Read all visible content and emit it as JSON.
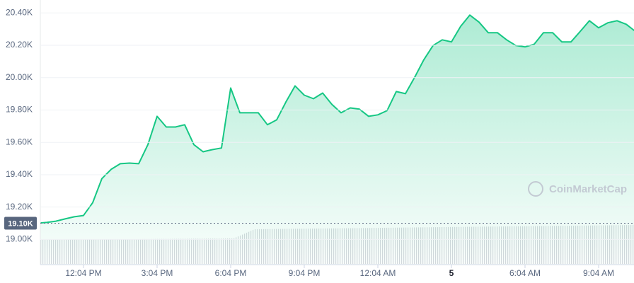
{
  "chart_data": {
    "type": "line",
    "categories": [
      null,
      null,
      null,
      null,
      null,
      "12:04 PM",
      null,
      null,
      null,
      null,
      null,
      null,
      null,
      "3:04 PM",
      null,
      null,
      null,
      null,
      null,
      null,
      null,
      "6:04 PM",
      null,
      null,
      null,
      null,
      null,
      null,
      null,
      "9:04 PM",
      null,
      null,
      null,
      null,
      null,
      null,
      null,
      "12:04 AM",
      null,
      null,
      null,
      null,
      null,
      null,
      null,
      "5",
      null,
      null,
      null,
      null,
      null,
      null,
      null,
      "6:04 AM",
      null,
      null,
      null,
      null,
      null,
      null,
      null,
      "9:04 AM",
      null,
      null,
      null,
      null
    ],
    "values": [
      19100,
      19105,
      19113,
      19127,
      19140,
      19148,
      19227,
      19376,
      19433,
      19468,
      19472,
      19468,
      19586,
      19761,
      19695,
      19695,
      19709,
      19586,
      19542,
      19555,
      19565,
      19936,
      19783,
      19783,
      19783,
      19709,
      19739,
      19849,
      19949,
      19892,
      19870,
      19905,
      19835,
      19783,
      19813,
      19805,
      19761,
      19770,
      19796,
      19914,
      19901,
      20002,
      20111,
      20199,
      20234,
      20221,
      20317,
      20387,
      20343,
      20278,
      20278,
      20234,
      20199,
      20190,
      20207,
      20278,
      20278,
      20221,
      20221,
      20286,
      20352,
      20308,
      20339,
      20352,
      20330,
      20286
    ],
    "color": "#16c784",
    "ylim": [
      18840,
      20480
    ],
    "yticks": [
      {
        "value": 19000,
        "label": "19.00K"
      },
      {
        "value": 19200,
        "label": "19.20K"
      },
      {
        "value": 19400,
        "label": "19.40K"
      },
      {
        "value": 19600,
        "label": "19.60K"
      },
      {
        "value": 19800,
        "label": "19.80K"
      },
      {
        "value": 20000,
        "label": "20.00K"
      },
      {
        "value": 20200,
        "label": "20.20K"
      },
      {
        "value": 20400,
        "label": "20.40K"
      }
    ],
    "reference": {
      "value": 19100,
      "label": "19.10K"
    },
    "watermark": "CoinMarketCap",
    "grid": true
  }
}
